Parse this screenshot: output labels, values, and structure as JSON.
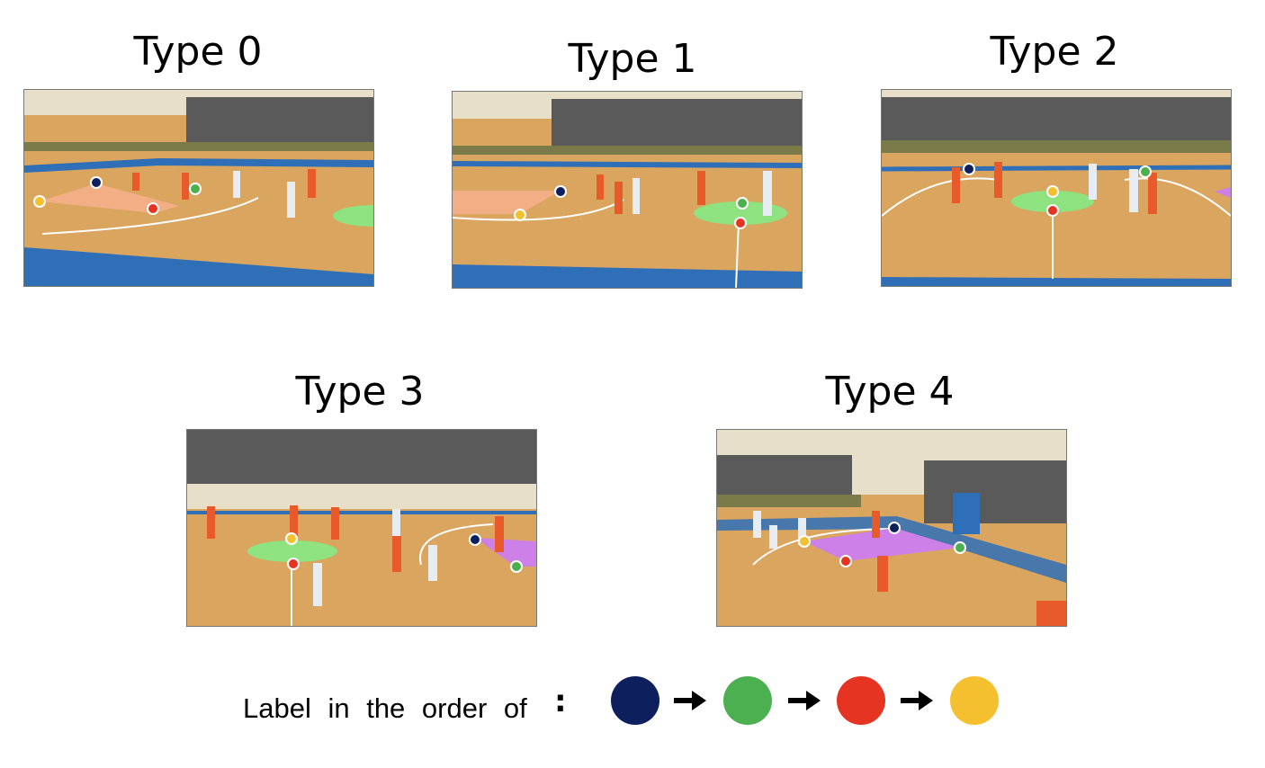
{
  "panels": [
    {
      "title": "Type 0"
    },
    {
      "title": "Type 1"
    },
    {
      "title": "Type 2"
    },
    {
      "title": "Type 3"
    },
    {
      "title": "Type 4"
    }
  ],
  "legend": {
    "label": "Label in the order of",
    "colon": ":",
    "order": [
      {
        "name": "navy",
        "color": "#0d1f5c"
      },
      {
        "name": "green",
        "color": "#4caf50"
      },
      {
        "name": "red",
        "color": "#e63422"
      },
      {
        "name": "yellow",
        "color": "#f5c030"
      }
    ]
  },
  "colors": {
    "floor": "#d9a55f",
    "blue_band": "#2e6fb8",
    "stands": "#5a5a5a",
    "wall": "#e8dfc8",
    "green_fill": "#8ee27f",
    "orange_fill": "#f2ae85",
    "purple_fill": "#cc80e8"
  }
}
